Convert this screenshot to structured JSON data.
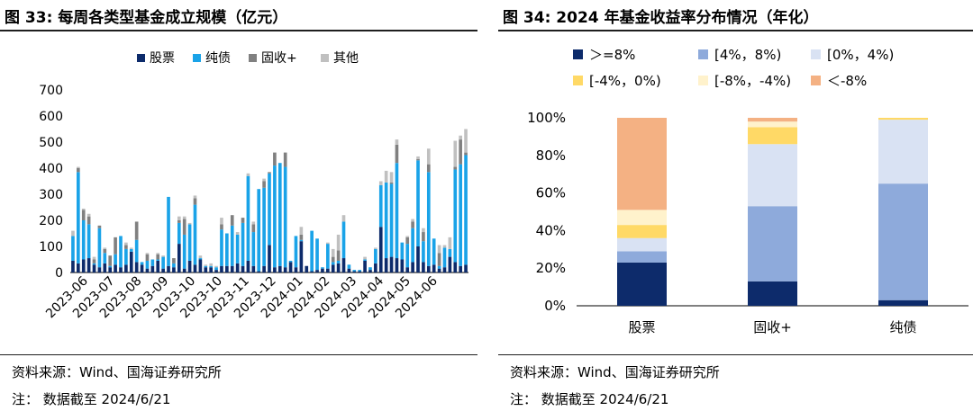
{
  "left": {
    "title": "图 33:  每周各类型基金成立规模（亿元）",
    "source": "资料来源：Wind、国海证券研究所",
    "note": "注：  数据截至 2024/6/21",
    "chart_data": {
      "type": "bar",
      "stacked": true,
      "unit": "亿元",
      "ylim": [
        0,
        700
      ],
      "yticks": [
        0,
        100,
        200,
        300,
        400,
        500,
        600,
        700
      ],
      "legend_position": "top",
      "x_tick_labels": [
        "2023-06",
        "2023-07",
        "2023-08",
        "2023-09",
        "2023-10",
        "2023-10",
        "2023-11",
        "2023-12",
        "2024-01",
        "2024-02",
        "2024-03",
        "2024-04",
        "2024-05",
        "2024-06"
      ],
      "colors": {
        "股票": "#0d2b6b",
        "纯债": "#1aa3e8",
        "固收+": "#808080",
        "其他": "#c0c0c0"
      },
      "series": [
        {
          "name": "股票",
          "values": [
            45,
            35,
            50,
            55,
            30,
            20,
            35,
            20,
            30,
            20,
            30,
            80,
            40,
            30,
            15,
            25,
            45,
            15,
            25,
            20,
            110,
            15,
            45,
            30,
            50,
            20,
            20,
            10,
            25,
            25,
            25,
            35,
            25,
            45,
            25,
            5,
            25,
            105,
            20,
            25,
            20,
            40,
            20,
            120,
            25,
            5,
            10,
            15,
            15,
            30,
            35,
            55,
            15,
            5,
            5,
            45,
            10,
            35,
            175,
            55,
            60,
            55,
            50,
            20,
            40,
            100,
            40,
            25,
            30,
            15,
            20,
            60,
            40,
            25,
            30
          ]
        },
        {
          "name": "纯债",
          "values": [
            95,
            350,
            150,
            130,
            5,
            150,
            40,
            5,
            40,
            120,
            60,
            10,
            85,
            10,
            30,
            25,
            5,
            45,
            265,
            15,
            80,
            130,
            140,
            230,
            5,
            5,
            5,
            10,
            140,
            125,
            155,
            110,
            165,
            325,
            130,
            315,
            300,
            275,
            390,
            395,
            385,
            5,
            120,
            5,
            0,
            155,
            120,
            5,
            95,
            10,
            10,
            140,
            15,
            5,
            5,
            5,
            10,
            55,
            160,
            290,
            280,
            365,
            65,
            90,
            130,
            330,
            80,
            360,
            100,
            10,
            75,
            30,
            355,
            390,
            420
          ]
        },
        {
          "name": "固收+",
          "values": [
            0,
            15,
            40,
            30,
            15,
            10,
            15,
            40,
            65,
            0,
            15,
            0,
            70,
            0,
            25,
            0,
            20,
            0,
            0,
            20,
            10,
            60,
            0,
            25,
            0,
            0,
            0,
            0,
            20,
            0,
            40,
            0,
            20,
            0,
            30,
            0,
            25,
            5,
            50,
            0,
            55,
            0,
            0,
            20,
            0,
            0,
            0,
            0,
            0,
            20,
            40,
            0,
            0,
            0,
            0,
            0,
            0,
            0,
            0,
            0,
            5,
            70,
            0,
            25,
            25,
            5,
            35,
            30,
            0,
            50,
            0,
            0,
            10,
            95,
            10
          ]
        },
        {
          "name": "其他",
          "values": [
            20,
            5,
            5,
            10,
            10,
            0,
            5,
            0,
            0,
            0,
            10,
            5,
            0,
            0,
            5,
            0,
            5,
            5,
            0,
            0,
            15,
            10,
            5,
            10,
            10,
            5,
            10,
            5,
            25,
            0,
            0,
            10,
            0,
            10,
            10,
            0,
            10,
            0,
            0,
            0,
            0,
            0,
            0,
            30,
            0,
            0,
            0,
            0,
            5,
            30,
            60,
            25,
            0,
            0,
            0,
            10,
            0,
            5,
            15,
            45,
            40,
            20,
            0,
            5,
            10,
            10,
            15,
            60,
            0,
            30,
            10,
            45,
            100,
            15,
            90
          ]
        }
      ]
    }
  },
  "right": {
    "title": "图 34:  2024 年基金收益率分布情况（年化）",
    "source": "资料来源：Wind、国海证券研究所",
    "note": "注：  数据截至 2024/6/21",
    "chart_data": {
      "type": "bar",
      "stacked": true,
      "percent": true,
      "ylim": [
        0,
        100
      ],
      "yticks": [
        "0%",
        "20%",
        "40%",
        "60%",
        "80%",
        "100%"
      ],
      "categories": [
        "股票",
        "固收+",
        "纯债"
      ],
      "legend_position": "top",
      "series": [
        {
          "name": "＞=8%",
          "color": "#0d2b6b",
          "values": [
            23,
            13,
            3
          ]
        },
        {
          "name": "[4%，8%)",
          "color": "#8eaadb",
          "values": [
            6,
            40,
            62
          ]
        },
        {
          "name": "[0%，4%)",
          "color": "#d9e2f3",
          "values": [
            7,
            33,
            34
          ]
        },
        {
          "name": "[-4%，0%)",
          "color": "#ffd966",
          "values": [
            7,
            9,
            1
          ]
        },
        {
          "name": "[-8%，-4%)",
          "color": "#fff2cc",
          "values": [
            8,
            3,
            0
          ]
        },
        {
          "name": "＜-8%",
          "color": "#f4b183",
          "values": [
            49,
            2,
            0
          ]
        }
      ]
    }
  }
}
